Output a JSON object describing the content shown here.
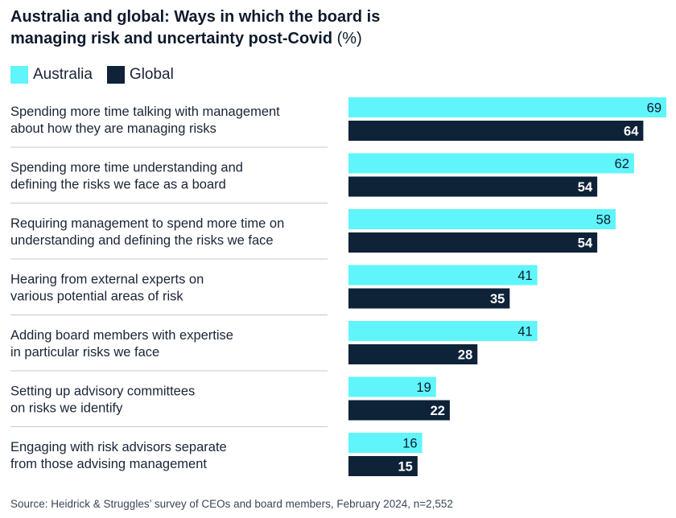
{
  "title_line1": "Australia and global: Ways in which the board is",
  "title_line2": "managing risk and uncertainty post-Covid",
  "title_unit": "(%)",
  "source": "Source: Heidrick & Struggles’ survey of CEOs and board members, February 2024, n=2,552",
  "colors": {
    "australia": "#5ff5fb",
    "global": "#0e2238",
    "divider": "#c9c9c9"
  },
  "chart_data": {
    "type": "bar",
    "orientation": "horizontal",
    "title": "Australia and global: Ways in which the board is managing risk and uncertainty post-Covid (%)",
    "legend": [
      "Australia",
      "Global"
    ],
    "legend_position": "top-left",
    "xlim": [
      0,
      69
    ],
    "categories": [
      [
        "Spending more time talking with management",
        "about how they are managing risks"
      ],
      [
        "Spending more time understanding and",
        "defining the risks we face as a board"
      ],
      [
        "Requiring management to spend more time on",
        "understanding and defining the risks we face"
      ],
      [
        "Hearing from external experts on",
        "various potential areas of risk"
      ],
      [
        "Adding board members with expertise",
        "in particular risks we face"
      ],
      [
        "Setting up advisory committees",
        "on risks we identify"
      ],
      [
        "Engaging with risk advisors separate",
        "from those advising management"
      ]
    ],
    "series": [
      {
        "name": "Australia",
        "values": [
          69,
          62,
          58,
          41,
          41,
          19,
          16
        ]
      },
      {
        "name": "Global",
        "values": [
          64,
          54,
          54,
          35,
          28,
          22,
          15
        ]
      }
    ]
  }
}
